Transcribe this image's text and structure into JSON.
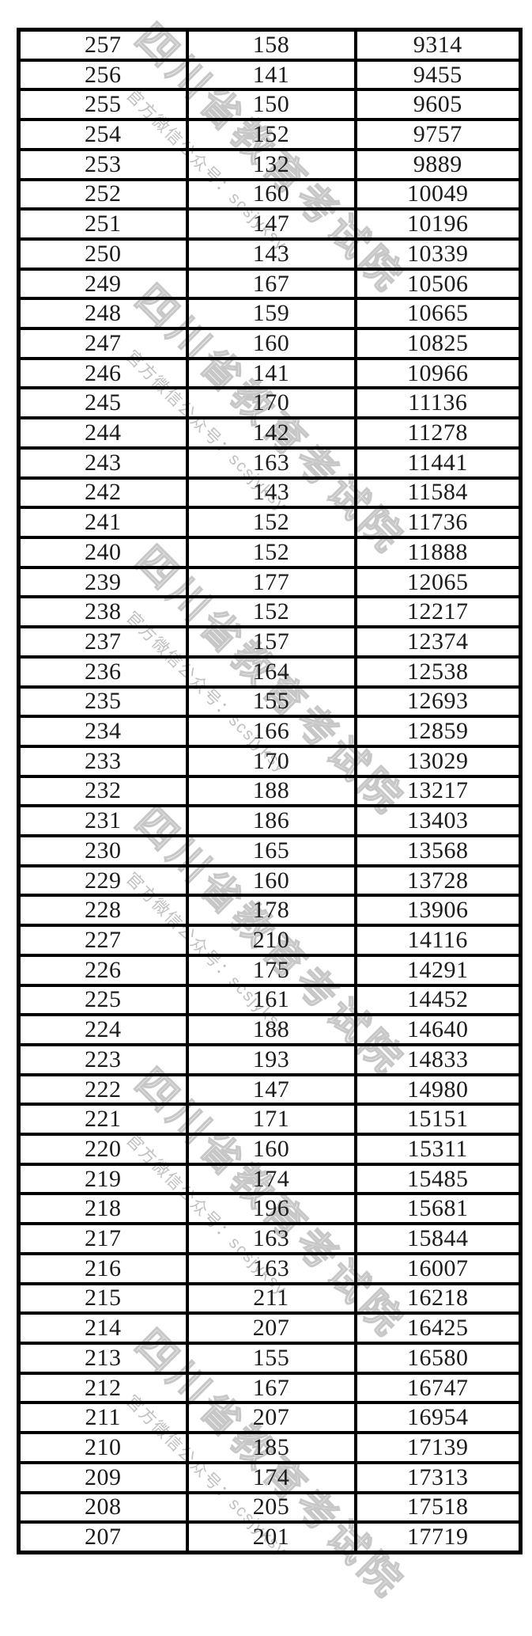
{
  "page": {
    "background_color": "#ffffff",
    "border_color": "#000000",
    "text_color": "#1c1c1c"
  },
  "watermark": {
    "main_text": "四川省教育考试院",
    "sub_text": "官方微信公众号：scsjyksy",
    "main_color": "#b5b5b5",
    "sub_color": "#ababab"
  },
  "table": {
    "rows": [
      [
        "257",
        "158",
        "9314"
      ],
      [
        "256",
        "141",
        "9455"
      ],
      [
        "255",
        "150",
        "9605"
      ],
      [
        "254",
        "152",
        "9757"
      ],
      [
        "253",
        "132",
        "9889"
      ],
      [
        "252",
        "160",
        "10049"
      ],
      [
        "251",
        "147",
        "10196"
      ],
      [
        "250",
        "143",
        "10339"
      ],
      [
        "249",
        "167",
        "10506"
      ],
      [
        "248",
        "159",
        "10665"
      ],
      [
        "247",
        "160",
        "10825"
      ],
      [
        "246",
        "141",
        "10966"
      ],
      [
        "245",
        "170",
        "11136"
      ],
      [
        "244",
        "142",
        "11278"
      ],
      [
        "243",
        "163",
        "11441"
      ],
      [
        "242",
        "143",
        "11584"
      ],
      [
        "241",
        "152",
        "11736"
      ],
      [
        "240",
        "152",
        "11888"
      ],
      [
        "239",
        "177",
        "12065"
      ],
      [
        "238",
        "152",
        "12217"
      ],
      [
        "237",
        "157",
        "12374"
      ],
      [
        "236",
        "164",
        "12538"
      ],
      [
        "235",
        "155",
        "12693"
      ],
      [
        "234",
        "166",
        "12859"
      ],
      [
        "233",
        "170",
        "13029"
      ],
      [
        "232",
        "188",
        "13217"
      ],
      [
        "231",
        "186",
        "13403"
      ],
      [
        "230",
        "165",
        "13568"
      ],
      [
        "229",
        "160",
        "13728"
      ],
      [
        "228",
        "178",
        "13906"
      ],
      [
        "227",
        "210",
        "14116"
      ],
      [
        "226",
        "175",
        "14291"
      ],
      [
        "225",
        "161",
        "14452"
      ],
      [
        "224",
        "188",
        "14640"
      ],
      [
        "223",
        "193",
        "14833"
      ],
      [
        "222",
        "147",
        "14980"
      ],
      [
        "221",
        "171",
        "15151"
      ],
      [
        "220",
        "160",
        "15311"
      ],
      [
        "219",
        "174",
        "15485"
      ],
      [
        "218",
        "196",
        "15681"
      ],
      [
        "217",
        "163",
        "15844"
      ],
      [
        "216",
        "163",
        "16007"
      ],
      [
        "215",
        "211",
        "16218"
      ],
      [
        "214",
        "207",
        "16425"
      ],
      [
        "213",
        "155",
        "16580"
      ],
      [
        "212",
        "167",
        "16747"
      ],
      [
        "211",
        "207",
        "16954"
      ],
      [
        "210",
        "185",
        "17139"
      ],
      [
        "209",
        "174",
        "17313"
      ],
      [
        "208",
        "205",
        "17518"
      ],
      [
        "207",
        "201",
        "17719"
      ]
    ]
  }
}
